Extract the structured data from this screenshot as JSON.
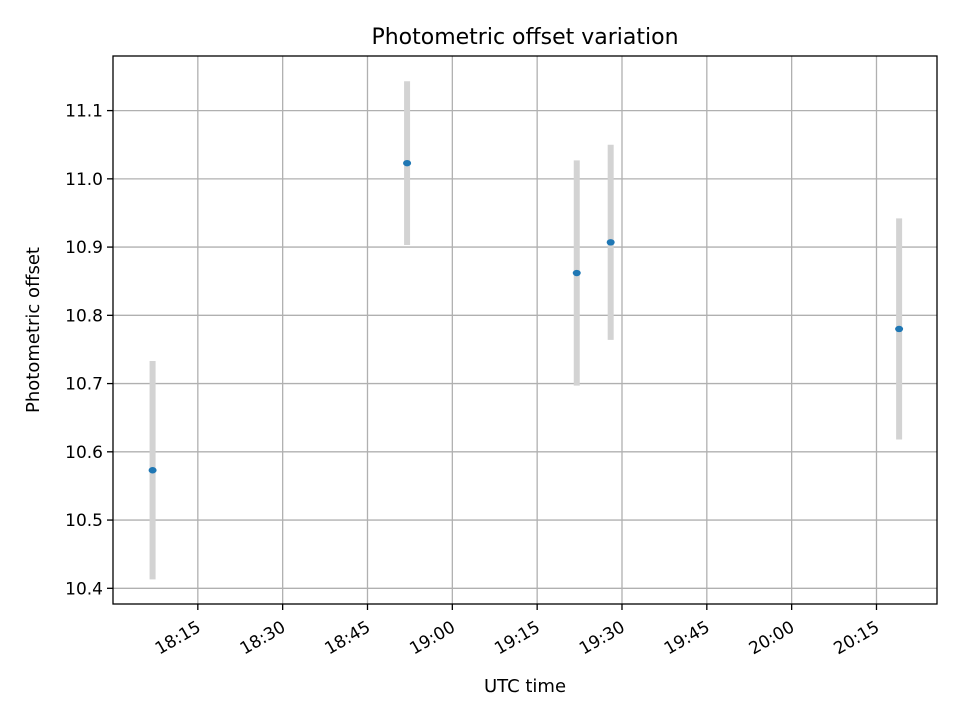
{
  "chart_data": {
    "type": "scatter",
    "title": "Photometric offset variation",
    "xlabel": "UTC time",
    "ylabel": "Photometric offset",
    "grid": true,
    "x_ticks": [
      "18:15",
      "18:30",
      "18:45",
      "19:00",
      "19:15",
      "19:30",
      "19:45",
      "20:00",
      "20:15"
    ],
    "x_tick_minutes": [
      1095,
      1110,
      1125,
      1140,
      1155,
      1170,
      1185,
      1200,
      1215
    ],
    "xlim_minutes": [
      1080,
      1225.7
    ],
    "y_ticks": [
      "10.4",
      "10.5",
      "10.6",
      "10.7",
      "10.8",
      "10.9",
      "11.0",
      "11.1"
    ],
    "y_tick_values": [
      10.4,
      10.5,
      10.6,
      10.7,
      10.8,
      10.9,
      11.0,
      11.1
    ],
    "ylim": [
      10.377,
      11.18
    ],
    "series": [
      {
        "marker_color": "#1f77b4",
        "errorbar_color": "#d3d3d3",
        "points": [
          {
            "time": "18:07",
            "y": 10.573,
            "err": 0.16
          },
          {
            "time": "18:52",
            "y": 11.023,
            "err": 0.12
          },
          {
            "time": "19:22",
            "y": 10.862,
            "err": 0.165
          },
          {
            "time": "19:28",
            "y": 10.907,
            "err": 0.143
          },
          {
            "time": "20:19",
            "y": 10.78,
            "err": 0.162
          }
        ]
      }
    ]
  }
}
